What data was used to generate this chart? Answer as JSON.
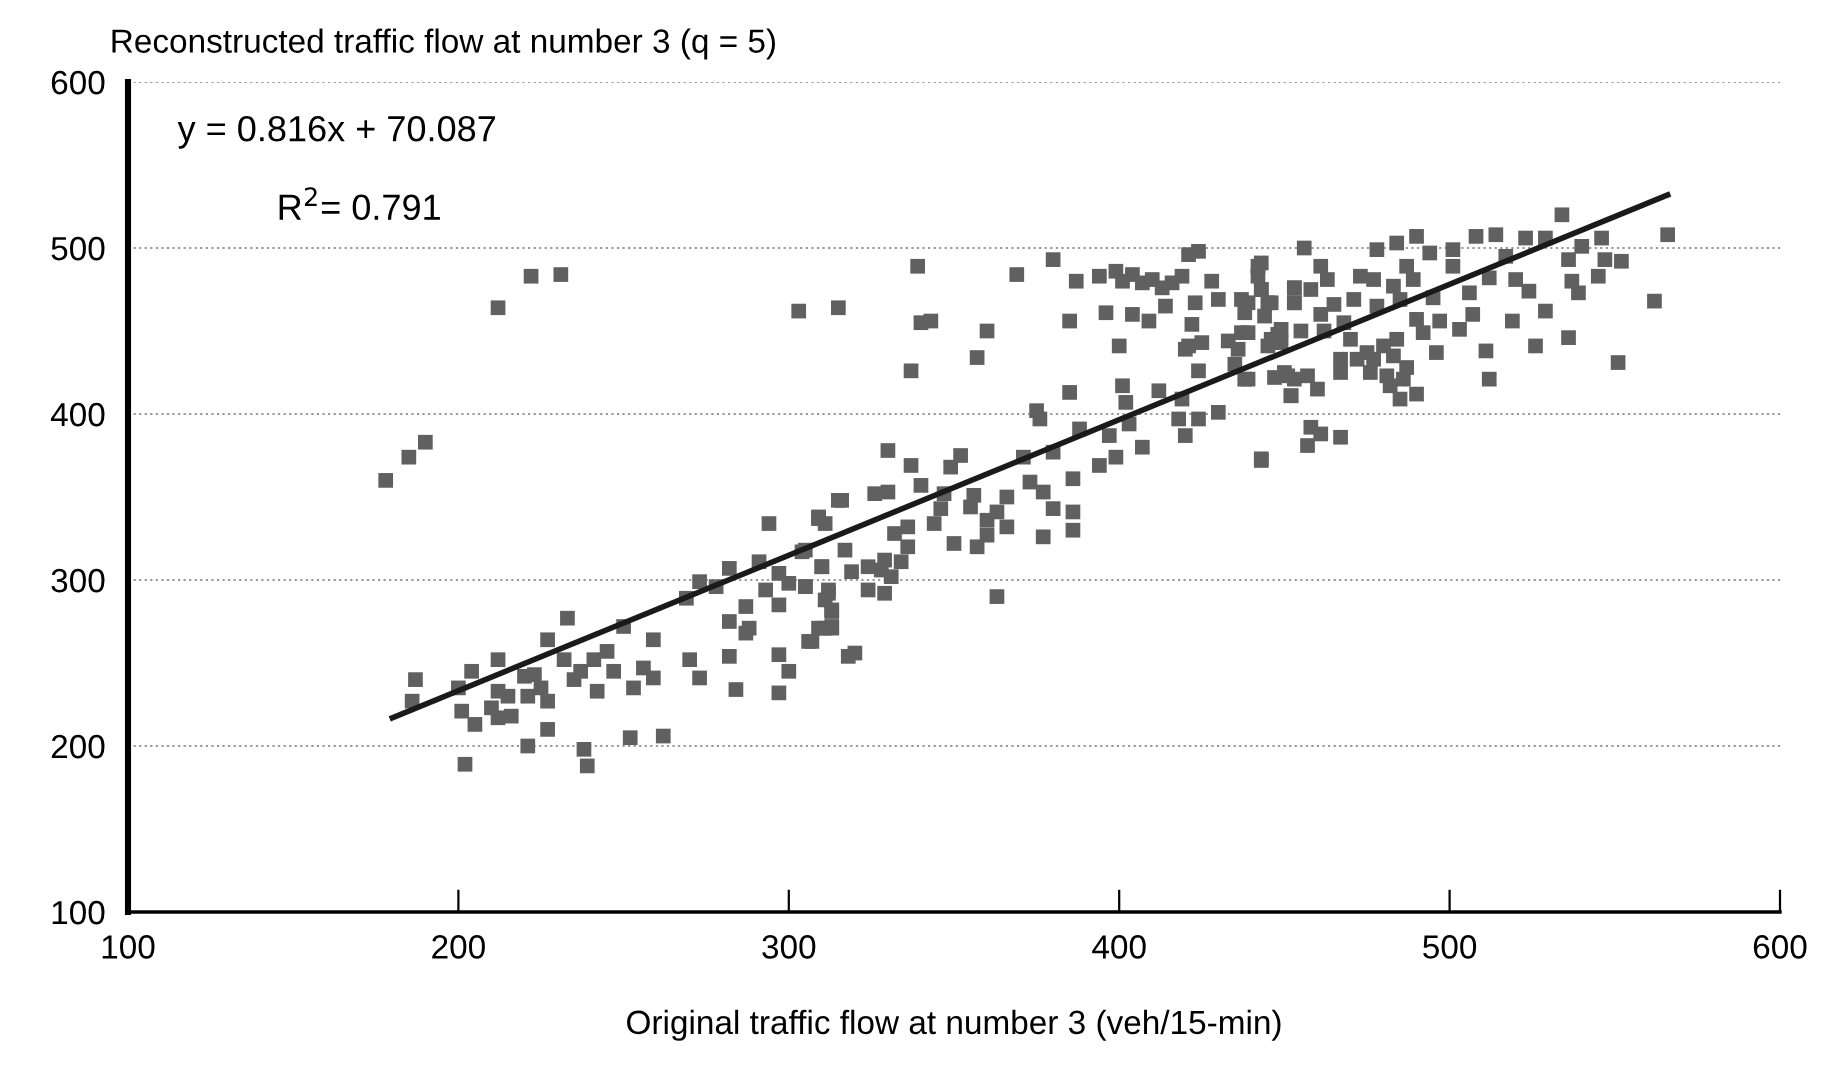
{
  "chart_data": {
    "type": "scatter",
    "title": "Reconstructed traffic flow at number 3 (q = 5)",
    "xlabel": "Original traffic flow at number 3 (veh/15-min)",
    "xlim": [
      100,
      600
    ],
    "ylim": [
      100,
      600
    ],
    "xticks": [
      100,
      200,
      300,
      400,
      500,
      600
    ],
    "yticks": [
      100,
      200,
      300,
      400,
      500,
      600
    ],
    "grid": "y",
    "marker": "square",
    "annotations": [
      {
        "text": "y = 0.816x + 70.087"
      },
      {
        "text": "R$^{2}$= 0.791"
      }
    ],
    "series": [
      {
        "color": "#606060",
        "x": [
          178,
          185,
          190,
          187,
          186,
          204,
          200,
          201,
          205,
          202,
          212,
          212,
          215,
          210,
          212,
          216,
          220,
          223,
          221,
          225,
          221,
          227,
          227,
          227,
          232,
          233,
          235,
          237,
          241,
          245,
          247,
          242,
          238,
          239,
          250,
          253,
          252,
          256,
          259,
          259,
          262,
          270,
          273,
          269,
          273,
          278,
          282,
          282,
          282,
          284,
          287,
          288,
          287,
          291,
          294,
          297,
          297,
          300,
          293,
          297,
          300,
          297,
          305,
          304,
          309,
          310,
          312,
          313,
          311,
          307,
          313,
          315,
          212,
          222,
          231,
          303,
          339,
          315,
          340,
          343,
          337,
          360,
          357,
          369,
          380,
          387,
          394,
          399,
          404,
          401,
          407,
          410,
          413,
          416,
          419,
          414,
          421,
          424,
          428,
          423,
          430,
          385,
          396,
          404,
          409,
          400,
          422,
          421,
          425,
          420,
          424,
          433,
          437,
          442,
          443,
          445,
          438,
          437,
          436,
          435,
          438,
          449,
          446,
          447,
          453,
          453,
          452,
          451,
          385,
          401,
          402,
          412,
          419,
          418,
          424,
          430,
          420,
          375,
          376,
          388,
          397,
          403,
          380,
          371,
          399,
          394,
          407,
          443,
          386,
          330,
          352,
          349,
          337,
          340,
          326,
          330,
          316,
          347,
          346,
          356,
          355,
          366,
          363,
          360,
          366,
          373,
          377,
          380,
          386,
          386,
          377,
          350,
          357,
          360,
          344,
          336,
          332,
          336,
          334,
          329,
          324,
          328,
          331,
          329,
          324,
          319,
          317,
          310,
          309,
          311,
          305,
          305,
          312,
          311,
          313,
          309,
          313,
          306,
          318,
          320,
          363,
          534,
          566,
          562,
          551,
          546,
          540,
          536,
          547,
          552,
          545,
          537,
          539,
          529,
          536,
          526,
          512,
          511,
          519,
          524,
          520,
          514,
          508,
          523,
          529,
          517,
          512,
          506,
          507,
          503,
          497,
          495,
          501,
          501,
          494,
          490,
          484,
          478,
          487,
          489,
          483,
          477,
          473,
          471,
          478,
          485,
          490,
          492,
          484,
          480,
          475,
          470,
          468,
          465,
          461,
          456,
          461,
          463,
          458,
          453,
          453,
          443,
          442,
          443,
          446,
          439,
          444,
          439,
          448,
          449,
          445,
          455,
          462,
          467,
          467,
          472,
          477,
          476,
          483,
          487,
          486,
          496,
          481,
          482,
          485,
          490,
          450,
          453,
          457,
          452,
          460,
          439,
          458,
          461,
          457,
          467,
          443
        ],
        "values": [
          360,
          374,
          383,
          240,
          227,
          245,
          235,
          221,
          213,
          189,
          252,
          233,
          230,
          223,
          217,
          218,
          242,
          243,
          200,
          235,
          230,
          227,
          210,
          264,
          252,
          277,
          240,
          245,
          252,
          257,
          245,
          233,
          198,
          188,
          272,
          235,
          205,
          247,
          264,
          241,
          206,
          252,
          241,
          289,
          299,
          296,
          307,
          275,
          254,
          234,
          284,
          271,
          268,
          311,
          334,
          255,
          232,
          245,
          294,
          304,
          298,
          285,
          296,
          317,
          337,
          308,
          292,
          282,
          271,
          263,
          272,
          348,
          464,
          483,
          484,
          462,
          489,
          464,
          455,
          456,
          426,
          450,
          434,
          484,
          493,
          480,
          483,
          486,
          484,
          480,
          479,
          481,
          476,
          479,
          483,
          465,
          496,
          498,
          480,
          467,
          469,
          456,
          461,
          460,
          456,
          441,
          454,
          441,
          443,
          439,
          426,
          444,
          469,
          489,
          475,
          467,
          461,
          449,
          439,
          430,
          421,
          451,
          445,
          422,
          476,
          467,
          411,
          423,
          413,
          417,
          407,
          414,
          409,
          397,
          397,
          401,
          387,
          402,
          397,
          391,
          387,
          394,
          377,
          374,
          374,
          369,
          380,
          373,
          361,
          378,
          375,
          368,
          369,
          357,
          352,
          353,
          348,
          352,
          343,
          351,
          344,
          350,
          341,
          336,
          332,
          359,
          353,
          343,
          341,
          330,
          326,
          322,
          320,
          327,
          334,
          332,
          328,
          320,
          311,
          312,
          308,
          306,
          302,
          292,
          294,
          305,
          318,
          308,
          338,
          334,
          318,
          296,
          294,
          288,
          281,
          271,
          271,
          263,
          254,
          256,
          290,
          520,
          508,
          468,
          431,
          506,
          501,
          493,
          493,
          492,
          483,
          480,
          473,
          462,
          446,
          441,
          421,
          438,
          456,
          474,
          481,
          508,
          507,
          506,
          506,
          495,
          482,
          473,
          460,
          451,
          456,
          470,
          489,
          499,
          497,
          507,
          503,
          499,
          489,
          481,
          477,
          481,
          483,
          469,
          465,
          469,
          457,
          449,
          445,
          441,
          437,
          445,
          455,
          466,
          460,
          500,
          489,
          481,
          475,
          476,
          467,
          491,
          483,
          475,
          467,
          467,
          459,
          449,
          448,
          443,
          441,
          450,
          450,
          433,
          425,
          433,
          433,
          425,
          435,
          428,
          421,
          437,
          423,
          417,
          409,
          412,
          425,
          421,
          423,
          411,
          415,
          421,
          392,
          388,
          381,
          386,
          372
        ]
      },
      {
        "type": "line",
        "color": "#1a1a1a",
        "marker": "none",
        "x": [
          180,
          566
        ],
        "values": [
          217,
          532
        ]
      }
    ]
  }
}
